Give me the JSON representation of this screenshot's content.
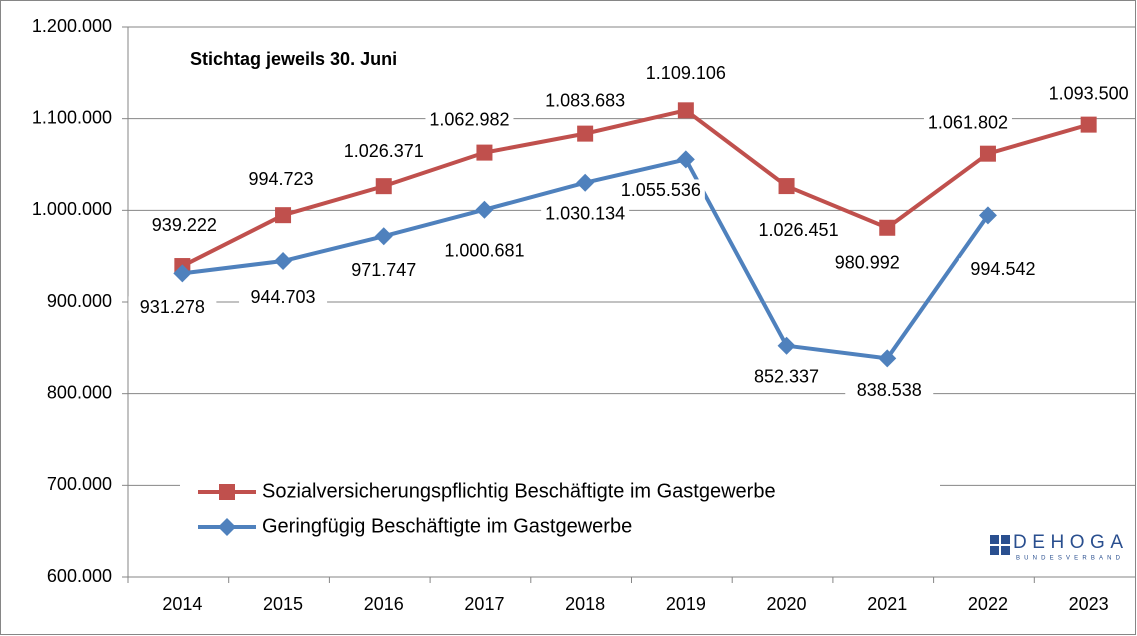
{
  "chart_data": {
    "type": "line",
    "title": "Stichtag jeweils 30. Juni",
    "categories": [
      "2014",
      "2015",
      "2016",
      "2017",
      "2018",
      "2019",
      "2020",
      "2021",
      "2022",
      "2023"
    ],
    "series": [
      {
        "name": "Sozialversicherungspflichtig Beschäftigte im Gastgewerbe",
        "color": "#c0504d",
        "marker": "square",
        "values": [
          939222,
          994723,
          1026371,
          1062982,
          1083683,
          1109106,
          1026451,
          980992,
          1061802,
          1093500
        ],
        "value_labels": [
          "939.222",
          "994.723",
          "1.026.371",
          "1.062.982",
          "1.083.683",
          "1.109.106",
          "1.026.451",
          "980.992",
          "1.061.802",
          "1.093.500"
        ]
      },
      {
        "name": "Geringfügig Beschäftigte im Gastgewerbe",
        "color": "#4f81bd",
        "marker": "diamond",
        "values": [
          931278,
          944703,
          971747,
          1000681,
          1030134,
          1055536,
          852337,
          838538,
          994542,
          null
        ],
        "value_labels": [
          "931.278",
          "944.703",
          "971.747",
          "1.000.681",
          "1.030.134",
          "1.055.536",
          "852.337",
          "838.538",
          "994.542",
          null
        ]
      }
    ],
    "ylim": [
      600000,
      1200000
    ],
    "yticks": [
      {
        "value": 600000,
        "label": "600.000"
      },
      {
        "value": 700000,
        "label": "700.000"
      },
      {
        "value": 800000,
        "label": "800.000"
      },
      {
        "value": 900000,
        "label": "900.000"
      },
      {
        "value": 1000000,
        "label": "1.000.000"
      },
      {
        "value": 1100000,
        "label": "1.100.000"
      },
      {
        "value": 1200000,
        "label": "1.200.000"
      }
    ],
    "grid": true,
    "legend": "bottom-left"
  },
  "logo": {
    "name": "DEHOGA",
    "sub": "BUNDESVERBAND"
  }
}
